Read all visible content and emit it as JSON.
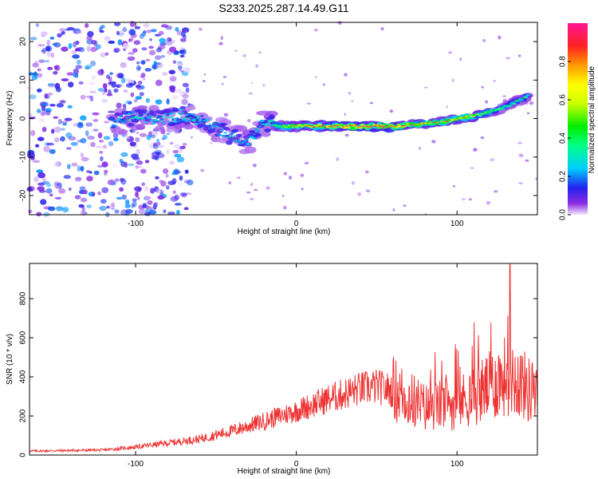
{
  "title": "S233.2025.287.14.49.G11",
  "chart_data": [
    {
      "type": "heatmap",
      "xlabel": "Height of straight line (km)",
      "ylabel": "Frequency (Hz)",
      "xlim": [
        -166,
        150
      ],
      "ylim": [
        -25,
        25
      ],
      "xticks": [
        -100,
        0,
        100
      ],
      "yticks": [
        -20,
        -10,
        0,
        10,
        20
      ],
      "colorbar": {
        "label": "Normalized spectral amplitude",
        "range": [
          0,
          1
        ],
        "ticks": [
          0.0,
          0.2,
          0.4,
          0.6,
          0.8
        ]
      },
      "ridge": [
        {
          "x": -115,
          "freq": -1.5,
          "amp": 0.3
        },
        {
          "x": -100,
          "freq": 0.5,
          "amp": 0.35
        },
        {
          "x": -85,
          "freq": 0.0,
          "amp": 0.3
        },
        {
          "x": -70,
          "freq": 1.0,
          "amp": 0.35
        },
        {
          "x": -55,
          "freq": -1.0,
          "amp": 0.3
        },
        {
          "x": -40,
          "freq": -5.0,
          "amp": 0.3
        },
        {
          "x": -30,
          "freq": -6.0,
          "amp": 0.35
        },
        {
          "x": -20,
          "freq": -1.0,
          "amp": 0.3
        },
        {
          "x": -10,
          "freq": -2.0,
          "amp": 0.5
        },
        {
          "x": 0,
          "freq": -2.0,
          "amp": 0.7
        },
        {
          "x": 20,
          "freq": -2.0,
          "amp": 0.9
        },
        {
          "x": 40,
          "freq": -2.0,
          "amp": 1.0
        },
        {
          "x": 60,
          "freq": -2.0,
          "amp": 0.9
        },
        {
          "x": 75,
          "freq": -1.5,
          "amp": 0.8
        },
        {
          "x": 90,
          "freq": -1.0,
          "amp": 0.7
        },
        {
          "x": 100,
          "freq": 0.0,
          "amp": 0.7
        },
        {
          "x": 115,
          "freq": 1.0,
          "amp": 0.6
        },
        {
          "x": 130,
          "freq": 3.0,
          "amp": 0.4
        },
        {
          "x": 145,
          "freq": 6.0,
          "amp": 0.4
        }
      ]
    },
    {
      "type": "line",
      "xlabel": "Height of straight line (km)",
      "ylabel": "SNR (10 * v/v)",
      "xlim": [
        -166,
        150
      ],
      "ylim": [
        0,
        980
      ],
      "xticks": [
        -100,
        0,
        100
      ],
      "yticks": [
        0,
        200,
        400,
        600,
        800
      ],
      "color": "#ee3333",
      "envelope": [
        {
          "x": -166,
          "value": 20
        },
        {
          "x": -120,
          "value": 25
        },
        {
          "x": -100,
          "value": 40
        },
        {
          "x": -80,
          "value": 60
        },
        {
          "x": -60,
          "value": 80
        },
        {
          "x": -40,
          "value": 120
        },
        {
          "x": -20,
          "value": 170
        },
        {
          "x": 0,
          "value": 220
        },
        {
          "x": 20,
          "value": 280
        },
        {
          "x": 40,
          "value": 330
        },
        {
          "x": 50,
          "value": 340
        },
        {
          "x": 60,
          "value": 320
        },
        {
          "x": 80,
          "value": 230
        },
        {
          "x": 100,
          "value": 250
        },
        {
          "x": 120,
          "value": 330
        },
        {
          "x": 133,
          "value": 400
        },
        {
          "x": 150,
          "value": 280
        }
      ],
      "peak": {
        "x": 133,
        "value": 975
      }
    }
  ]
}
